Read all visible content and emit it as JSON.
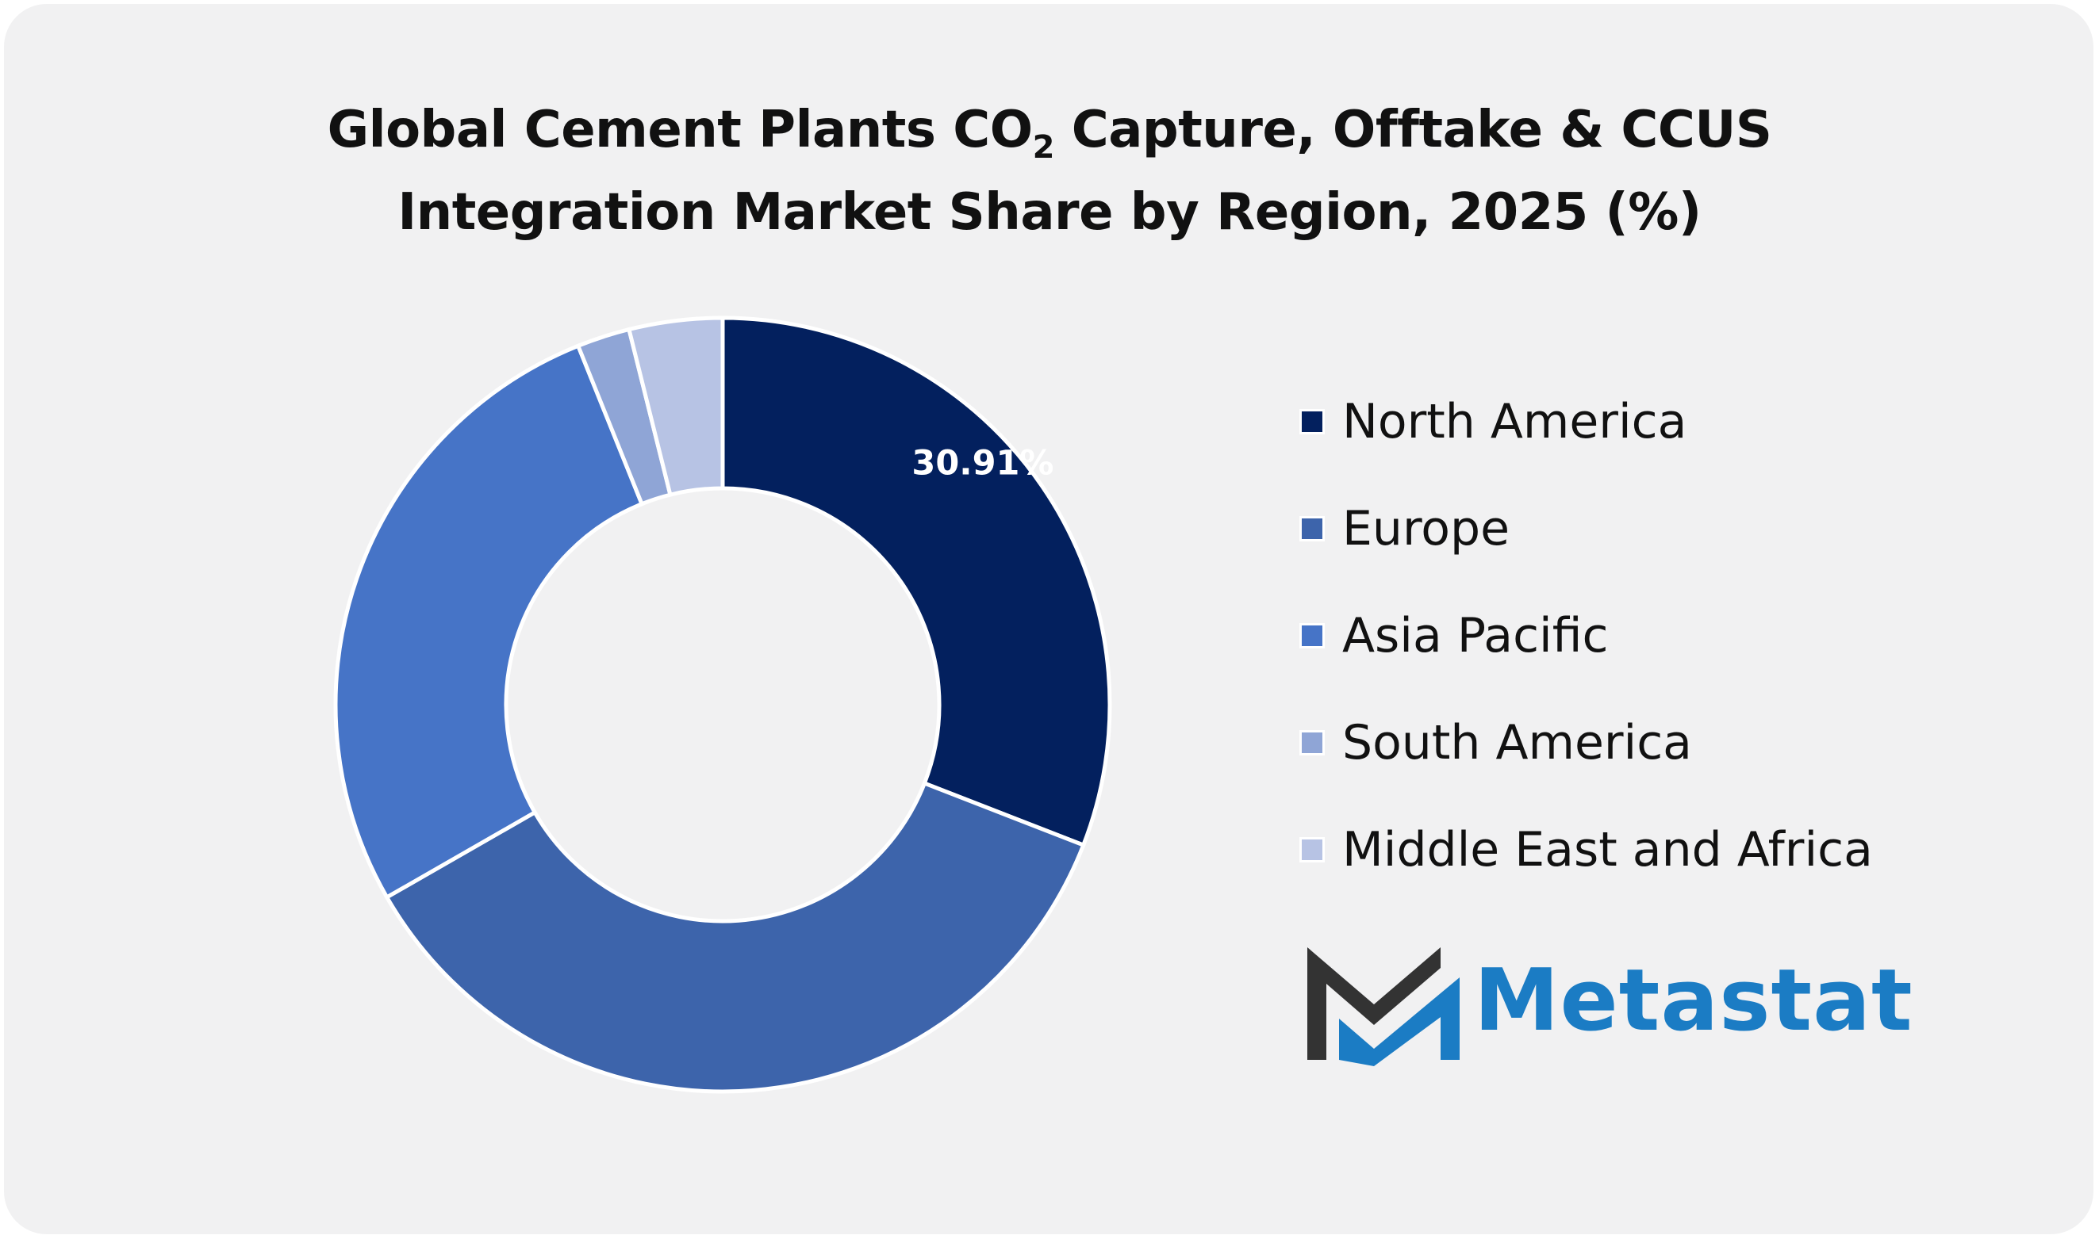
{
  "chart_data": {
    "type": "pie",
    "variant": "donut",
    "title_line1_main": "Global Cement Plants CO",
    "title_line1_sub": "2",
    "title_line1_rest": " Capture, Offtake & CCUS",
    "title_line2": "Integration Market Share by Region, 2025 (%)",
    "categories": [
      "North America",
      "Europe",
      "Asia Pacific",
      "South America",
      "Middle East and Africa"
    ],
    "values": [
      30.91,
      35.8,
      27.2,
      2.2,
      3.89
    ],
    "colors": [
      "#03205e",
      "#3d64ab",
      "#4674c7",
      "#8fa5d6",
      "#b7c3e4"
    ],
    "data_labels": [
      "30.91%",
      "",
      "",
      "",
      ""
    ],
    "legend_position": "right"
  },
  "brand": {
    "name": "Metastat",
    "logo_icon": "metastat-m-logo-icon",
    "dark_color": "#333333",
    "accent_color": "#1b7cc4"
  }
}
